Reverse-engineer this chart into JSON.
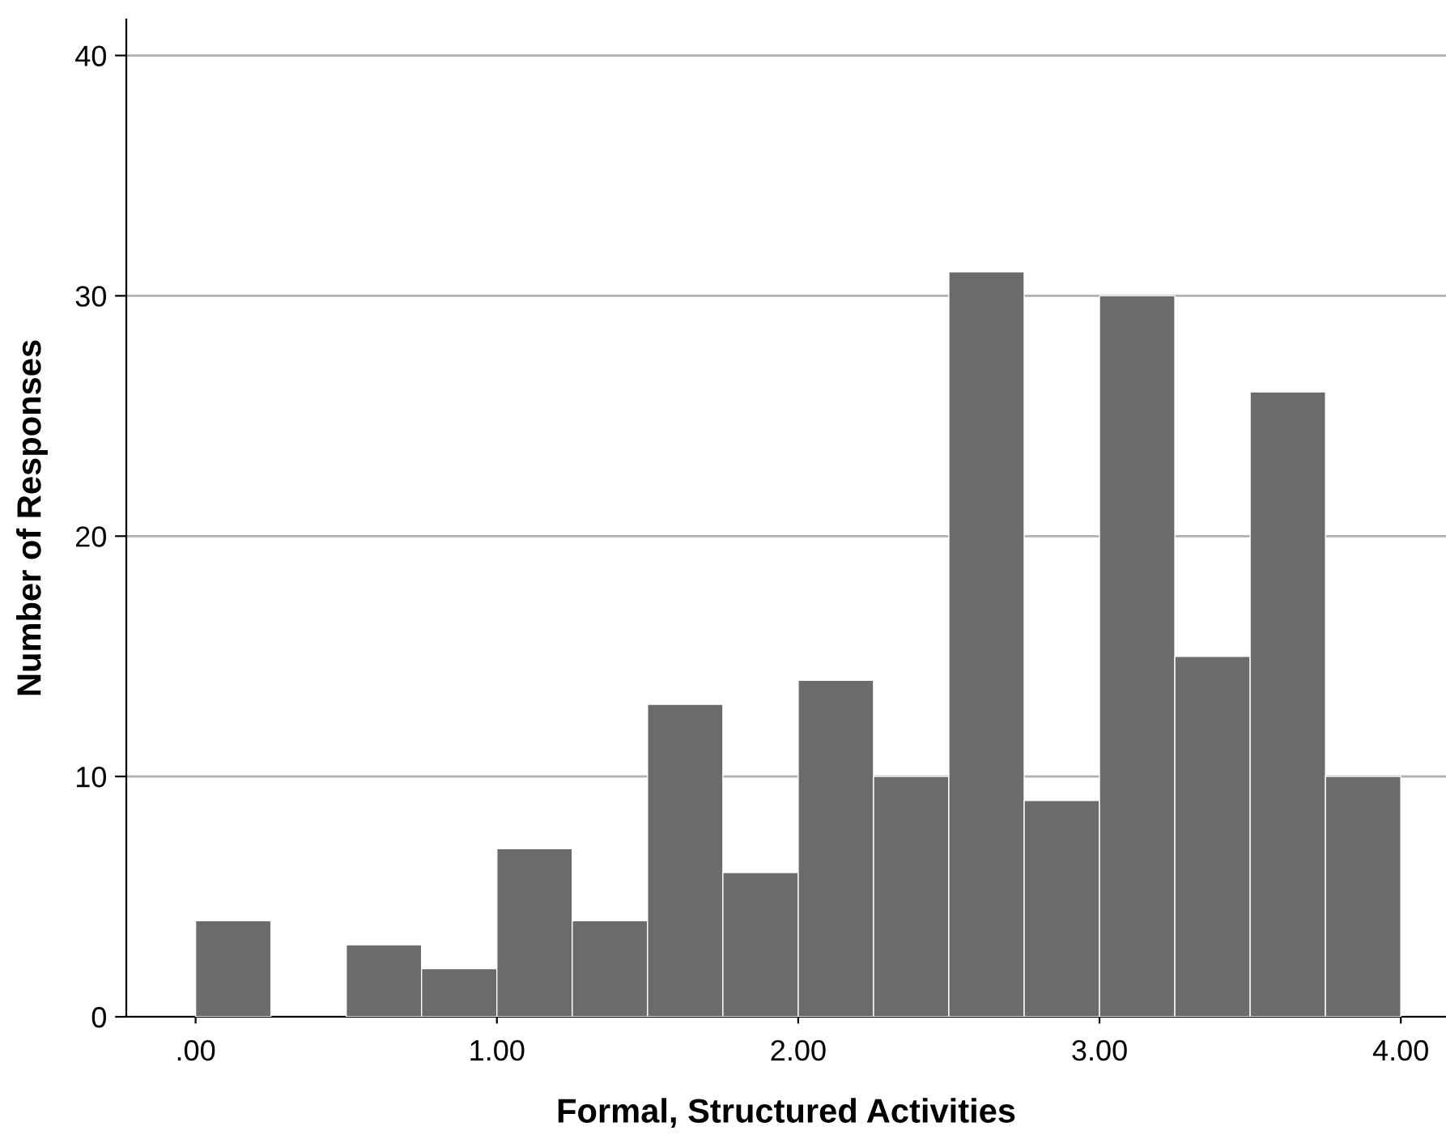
{
  "chart_data": {
    "type": "histogram",
    "xlabel": "Formal, Structured Activities",
    "ylabel": "Number of Responses",
    "bins": [
      0,
      0.25,
      0.5,
      0.75,
      1.0,
      1.25,
      1.5,
      1.75,
      2.0,
      2.25,
      2.5,
      2.75,
      3.0,
      3.25,
      3.5,
      3.75,
      4.0
    ],
    "values": [
      4,
      0,
      3,
      2,
      7,
      4,
      13,
      6,
      14,
      10,
      31,
      9,
      30,
      15,
      26,
      10
    ],
    "color": "#6b6b6d",
    "xlim": [
      -0.23,
      4.15
    ],
    "ylim": [
      0,
      41.5
    ],
    "xticks": [
      {
        "value": 0,
        "label": ".00"
      },
      {
        "value": 1,
        "label": "1.00"
      },
      {
        "value": 2,
        "label": "2.00"
      },
      {
        "value": 3,
        "label": "3.00"
      },
      {
        "value": 4,
        "label": "4.00"
      }
    ],
    "yticks": [
      0,
      10,
      20,
      30,
      40
    ],
    "grid": "y"
  }
}
